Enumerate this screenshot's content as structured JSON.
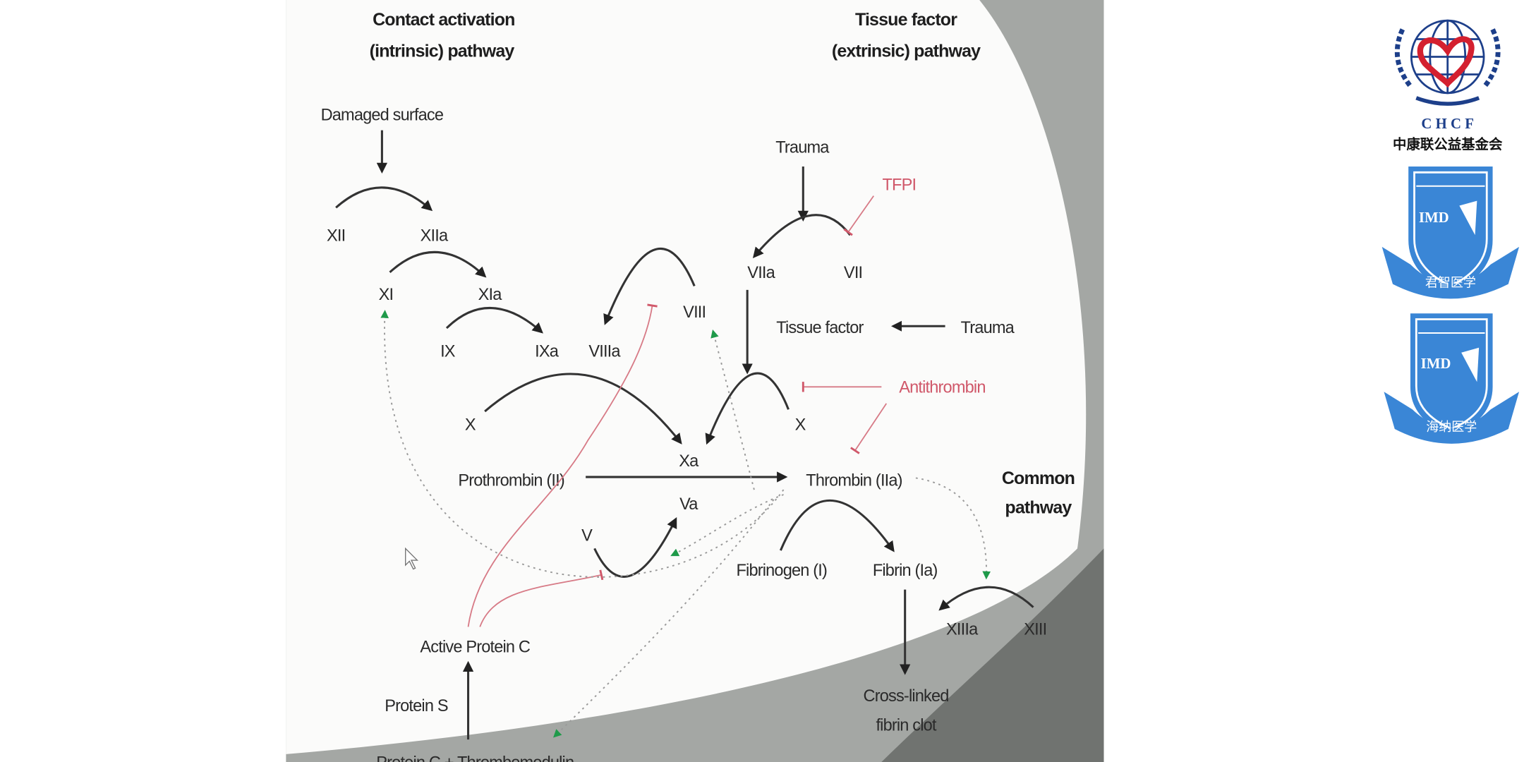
{
  "diagram": {
    "headers": {
      "intrinsic_1": "Contact activation",
      "intrinsic_2": "(intrinsic) pathway",
      "extrinsic_1": "Tissue factor",
      "extrinsic_2": "(extrinsic) pathway",
      "common_1": "Common",
      "common_2": "pathway"
    },
    "nodes": {
      "damaged_surface": "Damaged surface",
      "xii": "XII",
      "xiia": "XIIa",
      "xi": "XI",
      "xia": "XIa",
      "ix": "IX",
      "ixa": "IXa",
      "viiia": "VIIIa",
      "viii": "VIII",
      "trauma_1": "Trauma",
      "tfpi": "TFPI",
      "viia": "VIIa",
      "vii": "VII",
      "tissue_factor": "Tissue factor",
      "trauma_2": "Trauma",
      "antithrombin": "Antithrombin",
      "x_left": "X",
      "x_right": "X",
      "xa": "Xa",
      "va": "Va",
      "v": "V",
      "prothrombin": "Prothrombin (II)",
      "thrombin": "Thrombin (IIa)",
      "fibrinogen": "Fibrinogen (I)",
      "fibrin": "Fibrin (Ia)",
      "xiiia": "XIIIa",
      "xiii": "XIII",
      "clot_1": "Cross-linked",
      "clot_2": "fibrin clot",
      "active_protein_c": "Active Protein C",
      "protein_s": "Protein S",
      "protein_c_thrombomodulin": "Protein C + Thrombomodulin"
    },
    "colors": {
      "inhibitor": "#d0586a",
      "feedback_arrow": "#1f9a4a",
      "gray_backdrop": "#a4a7a4"
    }
  },
  "logos": {
    "chcf_abbr": "C H C F",
    "chcf_name": "中康联公益基金会",
    "imd_1_mark": "IMD",
    "imd_1_name": "君智医学",
    "imd_2_mark": "IMD",
    "imd_2_name": "海纳医学",
    "colors": {
      "navy": "#1d3f8a",
      "red": "#d4202f",
      "blue": "#3a86d6"
    }
  }
}
